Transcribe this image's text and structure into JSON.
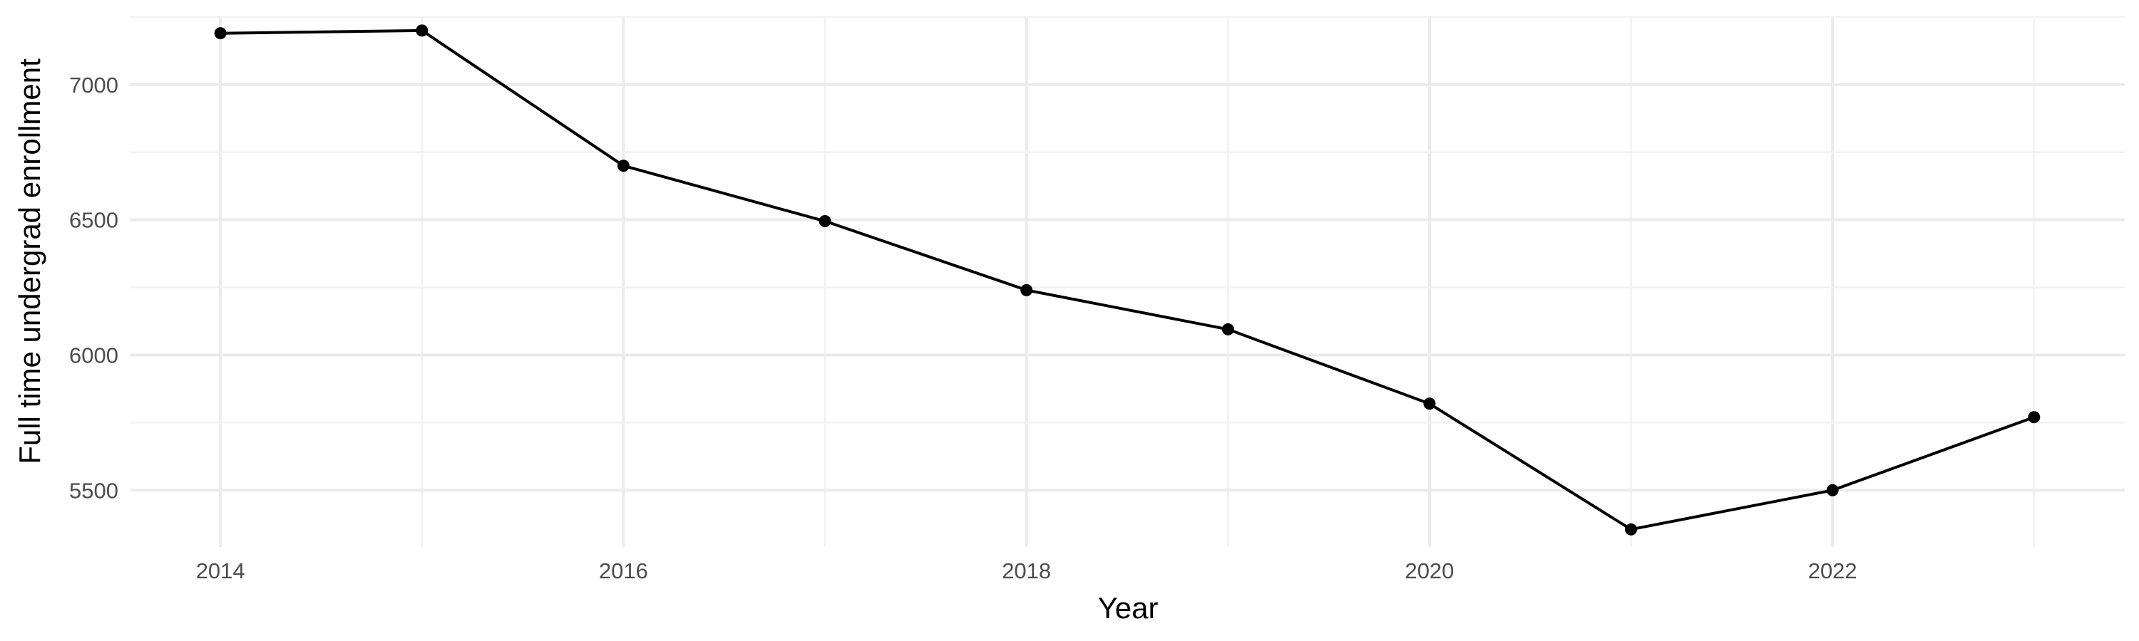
{
  "chart_data": {
    "type": "line",
    "title": "",
    "xlabel": "Year",
    "ylabel": "Full time undergrad enrollment",
    "x": [
      2014,
      2015,
      2016,
      2017,
      2018,
      2019,
      2020,
      2021,
      2022,
      2023
    ],
    "series": [
      {
        "values": [
          7190,
          7200,
          6700,
          6495,
          6240,
          6095,
          5820,
          5355,
          5500,
          5770
        ]
      }
    ],
    "xlim": [
      2013.55,
      2023.45
    ],
    "ylim": [
      5290,
      7255
    ],
    "x_ticks": [
      "2014",
      "2016",
      "2018",
      "2020",
      "2022"
    ],
    "y_ticks": [
      "5500",
      "6000",
      "6500",
      "7000"
    ],
    "grid": true,
    "legend": "none",
    "colors": {
      "line": "#000000",
      "point": "#000000",
      "grid": "#ebebeb"
    }
  }
}
